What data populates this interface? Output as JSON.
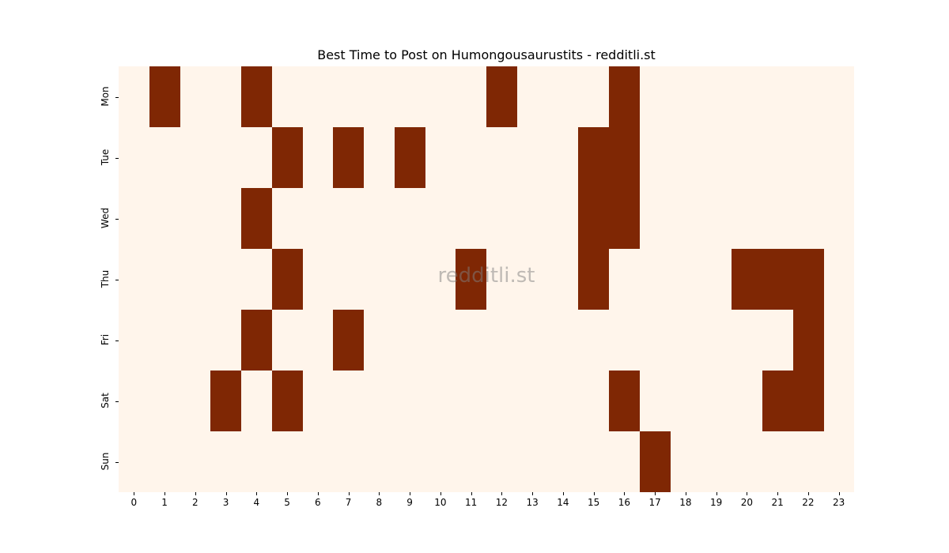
{
  "chart_data": {
    "type": "heatmap",
    "title": "Best Time to Post on Humongousaurustits - redditli.st",
    "watermark": "redditli.st",
    "xlabel": "",
    "ylabel": "",
    "x": [
      "0",
      "1",
      "2",
      "3",
      "4",
      "5",
      "6",
      "7",
      "8",
      "9",
      "10",
      "11",
      "12",
      "13",
      "14",
      "15",
      "16",
      "17",
      "18",
      "19",
      "20",
      "21",
      "22",
      "23"
    ],
    "y": [
      "Mon",
      "Tue",
      "Wed",
      "Thu",
      "Fri",
      "Sat",
      "Sun"
    ],
    "colors": {
      "low": "#fff5eb",
      "high": "#7f2704"
    },
    "values": [
      [
        0,
        1,
        0,
        0,
        1,
        0,
        0,
        0,
        0,
        0,
        0,
        0,
        1,
        0,
        0,
        0,
        1,
        0,
        0,
        0,
        0,
        0,
        0,
        0
      ],
      [
        0,
        0,
        0,
        0,
        0,
        1,
        0,
        1,
        0,
        1,
        0,
        0,
        0,
        0,
        0,
        1,
        1,
        0,
        0,
        0,
        0,
        0,
        0,
        0
      ],
      [
        0,
        0,
        0,
        0,
        1,
        0,
        0,
        0,
        0,
        0,
        0,
        0,
        0,
        0,
        0,
        1,
        1,
        0,
        0,
        0,
        0,
        0,
        0,
        0
      ],
      [
        0,
        0,
        0,
        0,
        0,
        1,
        0,
        0,
        0,
        0,
        0,
        1,
        0,
        0,
        0,
        1,
        0,
        0,
        0,
        0,
        1,
        1,
        1,
        0
      ],
      [
        0,
        0,
        0,
        0,
        1,
        0,
        0,
        1,
        0,
        0,
        0,
        0,
        0,
        0,
        0,
        0,
        0,
        0,
        0,
        0,
        0,
        0,
        1,
        0
      ],
      [
        0,
        0,
        0,
        1,
        0,
        1,
        0,
        0,
        0,
        0,
        0,
        0,
        0,
        0,
        0,
        0,
        1,
        0,
        0,
        0,
        0,
        1,
        1,
        0
      ],
      [
        0,
        0,
        0,
        0,
        0,
        0,
        0,
        0,
        0,
        0,
        0,
        0,
        0,
        0,
        0,
        0,
        0,
        1,
        0,
        0,
        0,
        0,
        0,
        0
      ]
    ],
    "legend": "none",
    "grid": false
  }
}
